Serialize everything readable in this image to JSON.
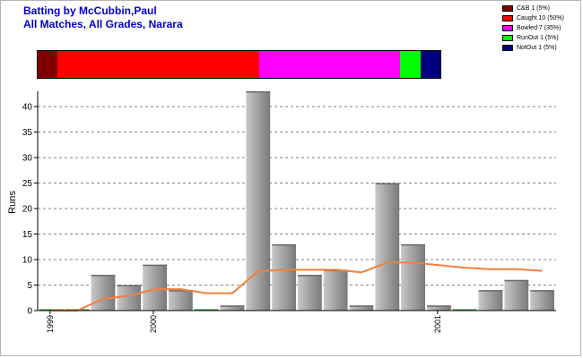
{
  "header": {
    "title_line1": "Batting by McCubbin,Paul",
    "title_line2": "All Matches, All Grades, Narara"
  },
  "legend": [
    {
      "label": "C&B 1 (5%)",
      "color": "#800000"
    },
    {
      "label": "Caught 10 (50%)",
      "color": "#ff0000"
    },
    {
      "label": "Bowled 7 (35%)",
      "color": "#ff00ff"
    },
    {
      "label": "RunOut 1 (5%)",
      "color": "#00ff00"
    },
    {
      "label": "NotOut 1 (5%)",
      "color": "#000080"
    }
  ],
  "dismissals": [
    {
      "type": "C&B",
      "count": 1,
      "color": "#800000"
    },
    {
      "type": "Caught",
      "count": 10,
      "color": "#ff0000"
    },
    {
      "type": "Bowled",
      "count": 7,
      "color": "#ff00ff"
    },
    {
      "type": "RunOut",
      "count": 1,
      "color": "#00ff00"
    },
    {
      "type": "NotOut",
      "count": 1,
      "color": "#000080"
    }
  ],
  "chart_data": {
    "type": "bar",
    "ylabel": "Runs",
    "ylim": [
      0,
      43
    ],
    "yticks": [
      0,
      5,
      10,
      15,
      20,
      25,
      30,
      35,
      40
    ],
    "grid": "horizontal dashed",
    "x_tick_labels": [
      {
        "label": "1999",
        "after_bar_index": 0
      },
      {
        "label": "2000",
        "after_bar_index": 4
      },
      {
        "label": "2001",
        "after_bar_index": 15
      }
    ],
    "series": [
      {
        "kind": "bar",
        "values": [
          0,
          0,
          7,
          5,
          9,
          4,
          0,
          1,
          43,
          13,
          7,
          8,
          1,
          25,
          13,
          1,
          0,
          4,
          6,
          4
        ]
      },
      {
        "kind": "line",
        "color": "#f08040",
        "values": [
          0,
          0,
          2.3,
          2.9,
          4.2,
          4.2,
          3.4,
          3.4,
          7.7,
          8.0,
          8.0,
          8.0,
          7.5,
          9.4,
          9.4,
          8.9,
          8.4,
          8.1,
          8.1,
          7.8
        ]
      }
    ]
  },
  "colors": {
    "title": "#0000cc",
    "bar_light": "#c8c8c8",
    "bar_dark": "#7a7a7a",
    "line": "#f08040",
    "grid": "#808080"
  }
}
